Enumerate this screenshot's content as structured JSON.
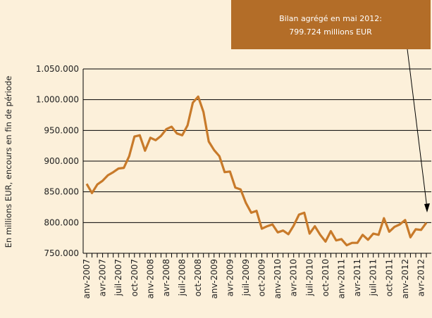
{
  "chart_data": {
    "type": "line",
    "y_axis_label": "En millions EUR, encours en fin de période",
    "annotation": [
      "Bilan agrégé en mai 2012:",
      "799.724 millions EUR"
    ],
    "categories": [
      "anv-2007",
      null,
      null,
      "avr-2007",
      null,
      null,
      "juil-2007",
      null,
      null,
      "oct-2007",
      null,
      null,
      "anv-2008",
      null,
      null,
      "avr-2008",
      null,
      null,
      "juil-2008",
      null,
      null,
      "oct-2008",
      null,
      null,
      "anv-2009",
      null,
      null,
      "avr-2009",
      null,
      null,
      "juil-2009",
      null,
      null,
      "oct-2009",
      null,
      null,
      "anv-2010",
      null,
      null,
      "avr-2010",
      null,
      null,
      "juil-2010",
      null,
      null,
      "oct-2010",
      null,
      null,
      "anv-2011",
      null,
      null,
      "avr-2011",
      null,
      null,
      "juil-2011",
      null,
      null,
      "oct-2011",
      null,
      null,
      "anv-2012",
      null,
      null,
      "avr-2012",
      null
    ],
    "series": [
      {
        "name": "Bilan agrégé",
        "color": "#c87a2a",
        "values": [
          863000,
          848000,
          862000,
          868000,
          877000,
          882000,
          888000,
          889000,
          908000,
          940000,
          942000,
          917000,
          938000,
          934000,
          941000,
          952000,
          956000,
          945000,
          942000,
          958000,
          995000,
          1005000,
          980000,
          932000,
          918000,
          908000,
          882000,
          883000,
          857000,
          854000,
          832000,
          816000,
          819000,
          790000,
          794000,
          797000,
          784000,
          787000,
          781000,
          795000,
          813000,
          816000,
          782000,
          794000,
          780000,
          769000,
          786000,
          771000,
          773000,
          763000,
          767000,
          767000,
          780000,
          772000,
          782000,
          780000,
          807000,
          785000,
          793000,
          797000,
          804000,
          776000,
          789000,
          788000,
          799724
        ]
      }
    ],
    "ylim": [
      750000,
      1050000
    ],
    "yticks": [
      {
        "value": 750000,
        "label": "750.000"
      },
      {
        "value": 800000,
        "label": "800.000"
      },
      {
        "value": 850000,
        "label": "850.000"
      },
      {
        "value": 900000,
        "label": "900.000"
      },
      {
        "value": 950000,
        "label": "950.000"
      },
      {
        "value": 1000000,
        "label": "1.000.000"
      },
      {
        "value": 1050000,
        "label": "1.050.000"
      }
    ],
    "grid": true
  }
}
